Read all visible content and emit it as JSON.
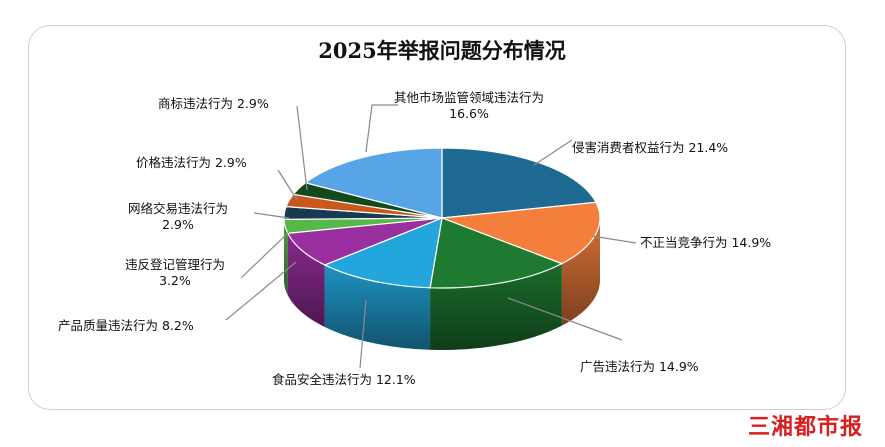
{
  "chart_data": {
    "type": "pie",
    "title": "2025年举报问题分布情况",
    "three_d": true,
    "start_angle_deg": -90,
    "direction": "clockwise",
    "slices": [
      {
        "label": "侵害消费者权益行为",
        "value": 21.4,
        "value_label": "21.4%",
        "color": "#1f6a93"
      },
      {
        "label": "不正当竞争行为",
        "value": 14.9,
        "value_label": "14.9%",
        "color": "#f47f3d"
      },
      {
        "label": "广告违法行为",
        "value": 14.9,
        "value_label": "14.9%",
        "color": "#1e7a31"
      },
      {
        "label": "食品安全违法行为",
        "value": 12.1,
        "value_label": "12.1%",
        "color": "#22a6dc"
      },
      {
        "label": "产品质量违法行为",
        "value": 8.2,
        "value_label": "8.2%",
        "color": "#9a2fa0"
      },
      {
        "label": "违反登记管理行为",
        "value": 3.2,
        "value_label": "3.2%",
        "color": "#55b848"
      },
      {
        "label": "网络交易违法行为",
        "value": 2.9,
        "value_label": "2.9%",
        "color": "#173a50"
      },
      {
        "label": "价格违法行为",
        "value": 2.9,
        "value_label": "2.9%",
        "color": "#c9581d"
      },
      {
        "label": "商标违法行为",
        "value": 2.9,
        "value_label": "2.9%",
        "color": "#124a1d"
      },
      {
        "label": "其他市场监管领域违法行为",
        "value": 16.6,
        "value_label": "16.6%",
        "color": "#57a4e6"
      }
    ]
  },
  "brand": {
    "name": "三湘都市报"
  }
}
